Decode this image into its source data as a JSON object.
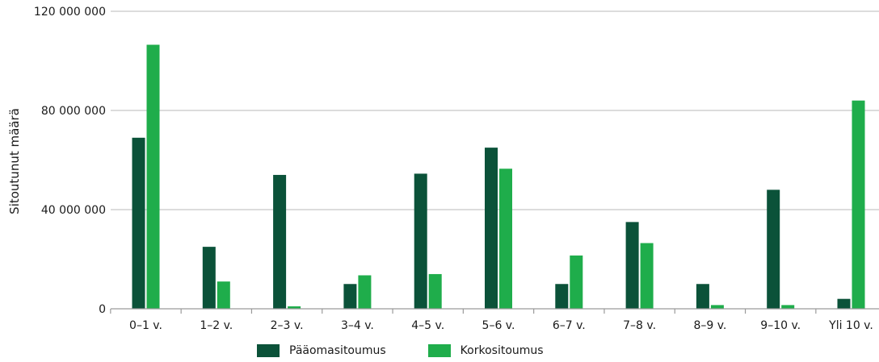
{
  "chart_data": {
    "type": "bar",
    "title": "",
    "xlabel": "",
    "ylabel": "Sitoutunut määrä",
    "categories": [
      "0–1 v.",
      "1–2 v.",
      "2–3 v.",
      "3–4 v.",
      "4–5 v.",
      "5–6 v.",
      "6–7 v.",
      "7–8 v.",
      "8–9 v.",
      "9–10 v.",
      "Yli 10 v."
    ],
    "series": [
      {
        "name": "Pääomasitoumus",
        "color": "#0b5239",
        "values": [
          69000000,
          25000000,
          54000000,
          10000000,
          54500000,
          65000000,
          10000000,
          35000000,
          10000000,
          48000000,
          4000000
        ]
      },
      {
        "name": "Korkositoumus",
        "color": "#1fad4b",
        "values": [
          106500000,
          11000000,
          1000000,
          13500000,
          14000000,
          56500000,
          21500000,
          26500000,
          1500000,
          1500000,
          84000000
        ]
      }
    ],
    "ylim": [
      0,
      120000000
    ],
    "yticks": [
      0,
      40000000,
      80000000,
      120000000
    ],
    "ytick_labels": [
      "0",
      "40 000 000",
      "80 000 000",
      "120 000 000"
    ],
    "grid": true,
    "legend": "bottom"
  }
}
